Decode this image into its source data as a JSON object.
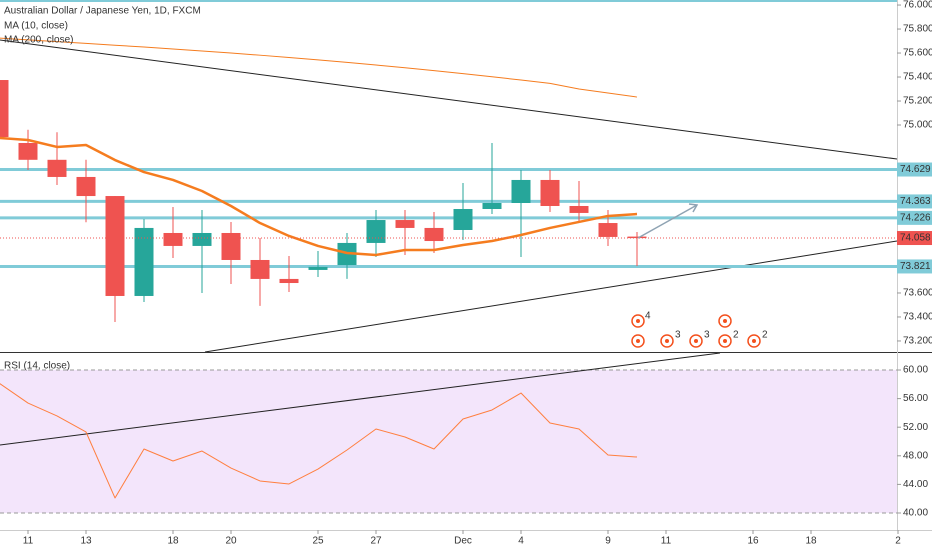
{
  "chart_data": [
    {
      "type": "candlestick",
      "title": "Australian Dollar / Japanese Yen, 1D, FXCM",
      "categories": [
        null,
        "11",
        null,
        "13",
        null,
        null,
        "18",
        null,
        "20",
        null,
        null,
        "25",
        null,
        "27",
        null,
        null,
        "Dec",
        null,
        "4",
        null,
        null,
        "9",
        null,
        "11",
        null,
        null,
        "16",
        null,
        "18",
        null,
        null,
        "2"
      ],
      "open": [
        75.375,
        74.85,
        74.71,
        74.567,
        74.408,
        73.575,
        74.1,
        73.992,
        74.1,
        73.875,
        73.717,
        73.792,
        73.833,
        74.017,
        74.208,
        74.142,
        74.125,
        74.3,
        74.35,
        74.542,
        74.325,
        74.183,
        74.07,
        null,
        null,
        null,
        null,
        null,
        null,
        null,
        null,
        null
      ],
      "high": [
        75.375,
        74.96,
        74.94,
        74.71,
        74.408,
        74.217,
        74.317,
        74.292,
        74.192,
        74.058,
        73.908,
        73.95,
        74.1,
        74.292,
        74.292,
        74.275,
        74.517,
        74.85,
        74.625,
        74.625,
        74.533,
        74.292,
        74.108,
        null,
        null,
        null,
        null,
        null,
        null,
        null,
        null,
        null
      ],
      "low": [
        74.9,
        74.625,
        74.5,
        74.19,
        73.358,
        73.525,
        73.892,
        73.6,
        73.675,
        73.492,
        73.608,
        73.733,
        73.717,
        73.9,
        73.917,
        73.933,
        74.042,
        74.258,
        73.9,
        74.275,
        74.192,
        73.992,
        73.825,
        null,
        null,
        null,
        null,
        null,
        null,
        null,
        null,
        null
      ],
      "close": [
        74.9,
        74.71,
        74.567,
        74.408,
        73.575,
        74.142,
        73.992,
        74.1,
        73.875,
        73.717,
        73.683,
        73.817,
        74.017,
        74.208,
        74.142,
        74.033,
        74.3,
        74.35,
        74.542,
        74.325,
        74.267,
        74.067,
        74.058,
        null,
        null,
        null,
        null,
        null,
        null,
        null,
        null,
        null
      ],
      "up_color": "#26a69a",
      "down_color": "#ef5350",
      "series": [
        {
          "name": "MA (10, close)",
          "color": "#f57c1f",
          "width": 2.5,
          "values": [
            74.892,
            74.875,
            74.817,
            74.833,
            74.708,
            74.608,
            74.542,
            74.45,
            74.325,
            74.183,
            74.075,
            73.992,
            73.933,
            73.917,
            73.958,
            73.958,
            74.0,
            74.033,
            74.083,
            74.142,
            74.192,
            74.242,
            74.258,
            null,
            null,
            null,
            null,
            null,
            null,
            null,
            null,
            null
          ]
        },
        {
          "name": "MA (200, close)",
          "color": "#f57c1f",
          "width": 1,
          "values": [
            75.725,
            75.71,
            75.695,
            75.68,
            75.665,
            75.65,
            75.634,
            75.617,
            75.6,
            75.582,
            75.563,
            75.543,
            75.522,
            75.5,
            75.477,
            75.453,
            75.428,
            75.402,
            75.375,
            75.347,
            75.3,
            75.267,
            75.233,
            null,
            null,
            null,
            null,
            null,
            null,
            null,
            null,
            null
          ]
        }
      ],
      "levels": [
        74.629,
        74.363,
        74.226,
        73.821
      ],
      "level_color": "#80cbd8",
      "event_counts": [
        4,
        3,
        3,
        2,
        2
      ],
      "ylim": [
        73.108,
        76.042
      ],
      "yticks": [
        {
          "value": 73.2,
          "label": "73.200"
        },
        {
          "value": 73.4,
          "label": "73.400"
        },
        {
          "value": 73.6,
          "label": "73.600"
        },
        {
          "value": 75.0,
          "label": "75.000"
        },
        {
          "value": 75.2,
          "label": "75.200"
        },
        {
          "value": 75.4,
          "label": "75.400"
        },
        {
          "value": 75.6,
          "label": "75.600"
        },
        {
          "value": 75.8,
          "label": "75.800"
        },
        {
          "value": 76.0,
          "label": "76.000"
        }
      ]
    },
    {
      "type": "line",
      "title": "RSI (14, close)",
      "series": [
        {
          "name": "RSI",
          "color": "#ff7f3f",
          "values": [
            58.18,
            55.38,
            53.57,
            51.33,
            42.1,
            48.95,
            47.27,
            48.67,
            46.29,
            44.48,
            44.06,
            46.15,
            48.81,
            51.75,
            50.63,
            48.95,
            53.15,
            54.41,
            56.78,
            52.59,
            51.75,
            48.11,
            47.83,
            null,
            null,
            null,
            null,
            null,
            null,
            null,
            null,
            null
          ]
        }
      ],
      "band": [
        40,
        60
      ],
      "band_color": "#f3e5fb",
      "ylim": [
        37.62,
        62.38
      ],
      "yticks": [
        {
          "value": 40,
          "label": "40.00"
        },
        {
          "value": 44,
          "label": "44.00"
        },
        {
          "value": 48,
          "label": "48.00"
        },
        {
          "value": 52,
          "label": "52.00"
        },
        {
          "value": 56,
          "label": "56.00"
        },
        {
          "value": 60,
          "label": "60.00"
        }
      ]
    }
  ]
}
